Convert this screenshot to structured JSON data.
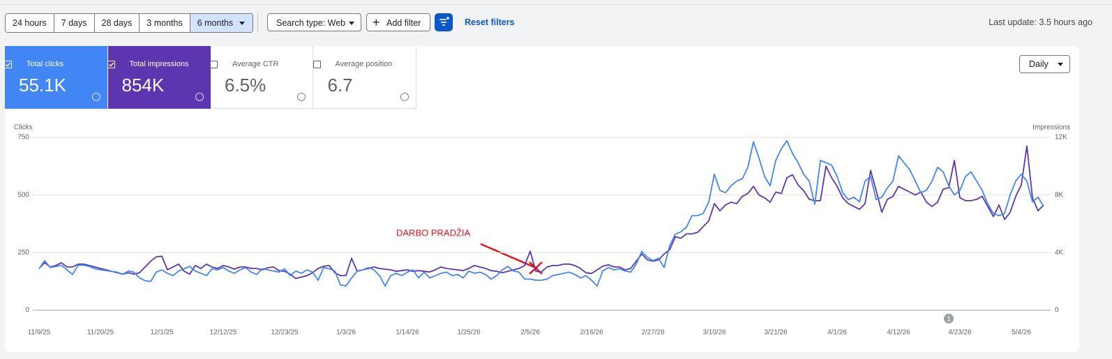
{
  "toolbar": {
    "date_ranges": [
      "24 hours",
      "7 days",
      "28 days",
      "3 months",
      "6 months"
    ],
    "selected_range": 4,
    "search_type": "Search type: Web",
    "add_filter": "Add filter",
    "reset_filters": "Reset filters",
    "last_update": "Last update: 3.5 hours ago"
  },
  "metrics": [
    {
      "label": "Total clicks",
      "value": "55.1K",
      "checked": true,
      "color": "#4285f4"
    },
    {
      "label": "Total impressions",
      "value": "854K",
      "checked": true,
      "color": "#5e35b1"
    },
    {
      "label": "Average CTR",
      "value": "6.5%",
      "checked": false
    },
    {
      "label": "Average position",
      "value": "6.7",
      "checked": false
    }
  ],
  "granularity": "Daily",
  "chart_data": {
    "type": "line",
    "y_label": "Clicks",
    "y2_label": "Impressions",
    "grid": true,
    "ylim": [
      0,
      750
    ],
    "yticks": [
      0,
      250,
      500,
      750
    ],
    "y2lim": [
      0,
      12000
    ],
    "y2ticks": [
      0,
      {
        "value": 4000,
        "label": "4K"
      },
      {
        "value": 8000,
        "label": "8K"
      },
      {
        "value": 12000,
        "label": "12K"
      }
    ],
    "annotation": "DARBO PRADŽIA",
    "annotation_marker": "1",
    "categories": [
      "11/9/25",
      null,
      null,
      null,
      null,
      null,
      null,
      null,
      null,
      null,
      null,
      "11/20/25",
      null,
      null,
      null,
      null,
      null,
      null,
      null,
      null,
      null,
      null,
      "12/1/25",
      null,
      null,
      null,
      null,
      null,
      null,
      null,
      null,
      null,
      null,
      "12/12/25",
      null,
      null,
      null,
      null,
      null,
      null,
      null,
      null,
      null,
      null,
      "12/23/25",
      null,
      null,
      null,
      null,
      null,
      null,
      null,
      null,
      null,
      null,
      "1/3/26",
      null,
      null,
      null,
      null,
      null,
      null,
      null,
      null,
      null,
      null,
      "1/14/26",
      null,
      null,
      null,
      null,
      null,
      null,
      null,
      null,
      null,
      null,
      "1/25/26",
      null,
      null,
      null,
      null,
      null,
      null,
      null,
      null,
      null,
      null,
      "2/5/26",
      null,
      null,
      null,
      null,
      null,
      null,
      null,
      null,
      null,
      null,
      "2/16/26",
      null,
      null,
      null,
      null,
      null,
      null,
      null,
      null,
      null,
      null,
      "2/27/26",
      null,
      null,
      null,
      null,
      null,
      null,
      null,
      null,
      null,
      null,
      "3/10/26",
      null,
      null,
      null,
      null,
      null,
      null,
      null,
      null,
      null,
      null,
      "3/21/26",
      null,
      null,
      null,
      null,
      null,
      null,
      null,
      null,
      null,
      null,
      "4/1/26",
      null,
      null,
      null,
      null,
      null,
      null,
      null,
      null,
      null,
      null,
      "4/12/26",
      null,
      null,
      null,
      null,
      null,
      null,
      null,
      null,
      null,
      null,
      "4/23/26",
      null,
      null,
      null,
      null,
      null,
      null,
      null,
      null,
      null,
      null,
      "5/4/26",
      null,
      null,
      null,
      null
    ],
    "series": [
      {
        "name": "Clicks",
        "color": "#4285f4",
        "values": [
          180,
          215,
          185,
          190,
          195,
          175,
          155,
          195,
          195,
          190,
          180,
          175,
          172,
          168,
          165,
          155,
          170,
          165,
          140,
          128,
          125,
          165,
          175,
          160,
          150,
          170,
          180,
          190,
          170,
          160,
          150,
          180,
          175,
          185,
          170,
          160,
          175,
          185,
          165,
          155,
          180,
          175,
          170,
          165,
          180,
          150,
          170,
          160,
          175,
          165,
          130,
          185,
          180,
          170,
          110,
          105,
          140,
          170,
          175,
          185,
          175,
          150,
          105,
          150,
          160,
          150,
          165,
          175,
          140,
          165,
          140,
          150,
          160,
          165,
          150,
          155,
          140,
          170,
          160,
          165,
          155,
          135,
          150,
          175,
          190,
          170,
          165,
          135,
          135,
          130,
          130,
          135,
          150,
          155,
          160,
          165,
          155,
          140,
          150,
          130,
          105,
          170,
          185,
          175,
          180,
          170,
          165,
          200,
          255,
          230,
          215,
          225,
          185,
          280,
          330,
          340,
          360,
          410,
          410,
          420,
          470,
          590,
          520,
          510,
          540,
          560,
          570,
          620,
          730,
          660,
          580,
          540,
          650,
          700,
          735,
          680,
          640,
          590,
          560,
          460,
          650,
          640,
          630,
          580,
          510,
          480,
          490,
          470,
          560,
          580,
          480,
          490,
          530,
          560,
          670,
          640,
          610,
          560,
          510,
          520,
          560,
          620,
          600,
          540,
          500,
          520,
          580,
          600,
          560,
          520,
          460,
          420,
          410,
          420,
          500,
          560,
          590,
          560,
          470,
          490,
          450
        ]
      },
      {
        "name": "Impressions",
        "color": "#5e35b1",
        "axis": "y2",
        "values": [
          2900,
          3300,
          3000,
          3100,
          3300,
          3000,
          3000,
          3200,
          3200,
          3100,
          3000,
          2900,
          2800,
          2700,
          2600,
          2500,
          2600,
          2500,
          2600,
          3000,
          3400,
          3700,
          3750,
          2800,
          3000,
          3200,
          2700,
          2500,
          3100,
          2900,
          3200,
          3000,
          2900,
          3100,
          3000,
          2850,
          3000,
          3000,
          2900,
          2900,
          2800,
          2950,
          3000,
          2750,
          2700,
          2500,
          2200,
          2300,
          2400,
          2600,
          2900,
          3050,
          3100,
          2600,
          2400,
          2400,
          3600,
          2700,
          2800,
          2900,
          3000,
          2900,
          2850,
          2800,
          2700,
          2750,
          2800,
          2700,
          2750,
          2700,
          2650,
          2800,
          3000,
          2900,
          2850,
          2800,
          2750,
          2900,
          3100,
          3000,
          2900,
          2750,
          2700,
          2600,
          2700,
          2800,
          2900,
          3100,
          4100,
          2700,
          2650,
          3000,
          3100,
          3100,
          3200,
          3200,
          3100,
          2900,
          2600,
          2550,
          2800,
          3050,
          3150,
          3000,
          3000,
          2800,
          2900,
          3400,
          3900,
          3500,
          3400,
          3500,
          3900,
          4200,
          5100,
          5000,
          5300,
          5300,
          5400,
          5800,
          6200,
          7400,
          6900,
          7300,
          7500,
          7400,
          7900,
          8100,
          8600,
          8000,
          7800,
          7500,
          8200,
          8100,
          9200,
          9400,
          8700,
          8300,
          7700,
          7600,
          7600,
          10000,
          9200,
          8600,
          7800,
          7400,
          7200,
          7000,
          7400,
          9700,
          8300,
          6800,
          7700,
          7900,
          8600,
          8400,
          8200,
          8000,
          8200,
          7500,
          7200,
          7500,
          8400,
          8500,
          10400,
          7800,
          7600,
          7600,
          7700,
          7900,
          7200,
          6500,
          7300,
          6300,
          6800,
          7900,
          8700,
          11400,
          7800,
          6900,
          7300
        ]
      }
    ]
  }
}
